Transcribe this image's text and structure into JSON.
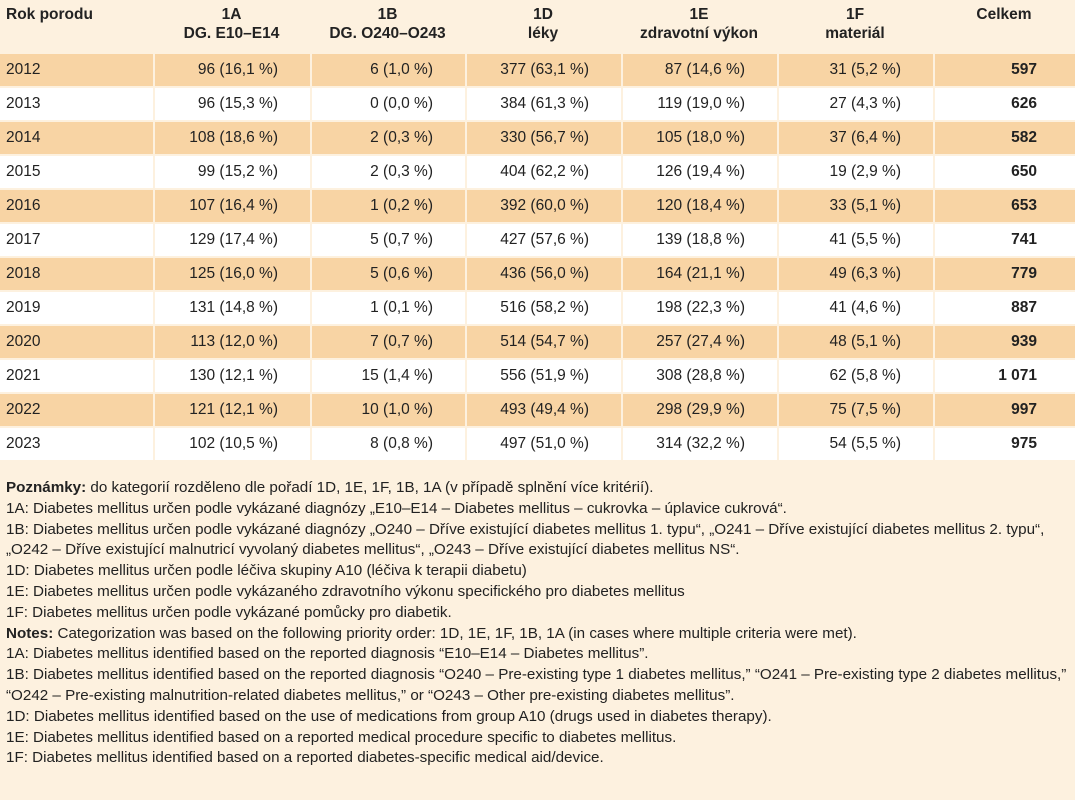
{
  "table": {
    "headers": [
      {
        "line1": "Rok porodu",
        "line2": ""
      },
      {
        "line1": "1A",
        "line2": "DG. E10–E14"
      },
      {
        "line1": "1B",
        "line2": "DG. O240–O243"
      },
      {
        "line1": "1D",
        "line2": "léky"
      },
      {
        "line1": "1E",
        "line2": "zdravotní výkon"
      },
      {
        "line1": "1F",
        "line2": "materiál"
      },
      {
        "line1": "Celkem",
        "line2": ""
      }
    ],
    "rows": [
      [
        "2012",
        "96 (16,1 %)",
        "6 (1,0 %)",
        "377 (63,1 %)",
        "87 (14,6 %)",
        "31 (5,2 %)",
        "597"
      ],
      [
        "2013",
        "96 (15,3 %)",
        "0 (0,0 %)",
        "384 (61,3 %)",
        "119 (19,0 %)",
        "27 (4,3 %)",
        "626"
      ],
      [
        "2014",
        "108 (18,6 %)",
        "2 (0,3 %)",
        "330 (56,7 %)",
        "105 (18,0 %)",
        "37 (6,4 %)",
        "582"
      ],
      [
        "2015",
        "99 (15,2 %)",
        "2 (0,3 %)",
        "404 (62,2 %)",
        "126 (19,4 %)",
        "19 (2,9 %)",
        "650"
      ],
      [
        "2016",
        "107 (16,4 %)",
        "1 (0,2 %)",
        "392 (60,0 %)",
        "120 (18,4 %)",
        "33 (5,1 %)",
        "653"
      ],
      [
        "2017",
        "129 (17,4 %)",
        "5 (0,7 %)",
        "427 (57,6 %)",
        "139 (18,8 %)",
        "41 (5,5 %)",
        "741"
      ],
      [
        "2018",
        "125 (16,0 %)",
        "5 (0,6 %)",
        "436 (56,0 %)",
        "164 (21,1 %)",
        "49 (6,3 %)",
        "779"
      ],
      [
        "2019",
        "131 (14,8 %)",
        "1 (0,1 %)",
        "516 (58,2 %)",
        "198 (22,3 %)",
        "41 (4,6 %)",
        "887"
      ],
      [
        "2020",
        "113 (12,0 %)",
        "7 (0,7 %)",
        "514 (54,7 %)",
        "257 (27,4 %)",
        "48 (5,1 %)",
        "939"
      ],
      [
        "2021",
        "130 (12,1 %)",
        "15 (1,4 %)",
        "556 (51,9 %)",
        "308 (28,8 %)",
        "62 (5,8 %)",
        "1 071"
      ],
      [
        "2022",
        "121 (12,1 %)",
        "10 (1,0 %)",
        "493 (49,4 %)",
        "298 (29,9 %)",
        "75 (7,5 %)",
        "997"
      ],
      [
        "2023",
        "102 (10,5 %)",
        "8 (0,8 %)",
        "497 (51,0 %)",
        "314 (32,2 %)",
        "54 (5,5 %)",
        "975"
      ]
    ]
  },
  "notes": [
    {
      "bold": "Poznámky:",
      "text": " do kategorií rozděleno dle pořadí 1D, 1E, 1F, 1B, 1A (v případě splnění více kritérií)."
    },
    {
      "bold": "",
      "text": "1A: Diabetes mellitus určen podle vykázané diagnózy „E10–E14 – Diabetes mellitus – cukrovka – úplavice cukrová“."
    },
    {
      "bold": "",
      "text": "1B: Diabetes mellitus určen podle vykázané diagnózy „O240 – Dříve existující diabetes mellitus 1. typu“, „O241 – Dříve existující diabetes mellitus 2. typu“, „O242 – Dříve existující malnutricí vyvolaný diabetes mellitus“, „O243 – Dříve existující diabetes mellitus NS“."
    },
    {
      "bold": "",
      "text": "1D: Diabetes mellitus určen podle léčiva skupiny A10 (léčiva k terapii diabetu)"
    },
    {
      "bold": "",
      "text": "1E: Diabetes mellitus určen podle vykázaného zdravotního výkonu specifického pro diabetes mellitus"
    },
    {
      "bold": "",
      "text": "1F: Diabetes mellitus určen podle vykázané pomůcky pro diabetik."
    },
    {
      "bold": "Notes:",
      "text": " Categorization was based on the following priority order: 1D, 1E, 1F, 1B, 1A (in cases where multiple criteria were met)."
    },
    {
      "bold": "",
      "text": "1A: Diabetes mellitus identified based on the reported diagnosis “E10–E14 – Diabetes mellitus”."
    },
    {
      "bold": "",
      "text": "1B: Diabetes mellitus identified based on the reported diagnosis “O240 – Pre-existing type 1 diabetes mellitus,” “O241 – Pre-existing type 2 diabetes mellitus,” “O242 – Pre-existing malnutrition-related diabetes mellitus,” or “O243 – Other pre-existing diabetes mellitus”."
    },
    {
      "bold": "",
      "text": "1D: Diabetes mellitus identified based on the use of medications from group A10 (drugs used in diabetes therapy)."
    },
    {
      "bold": "",
      "text": "1E: Diabetes mellitus identified based on a reported medical procedure specific to diabetes mellitus."
    },
    {
      "bold": "",
      "text": "1F: Diabetes mellitus identified based on a reported diabetes-specific medical aid/device."
    }
  ],
  "colors": {
    "background": "#fdf1df",
    "stripe": "#f8d4a4",
    "row_alt": "#ffffff"
  }
}
